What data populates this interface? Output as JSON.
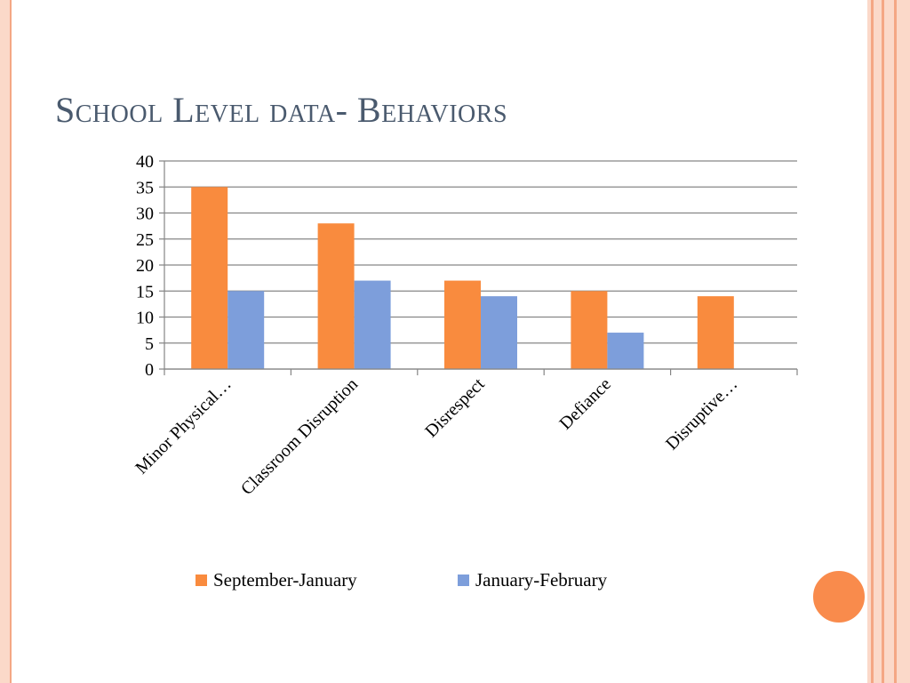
{
  "slide": {
    "title": "School Level data- Behaviors"
  },
  "colors": {
    "frame_light": "#fbd9c9",
    "frame_stripe": "#f4a784",
    "accent_circle": "#f98b4c",
    "title_text": "#4a5a6e",
    "gridline": "#868686"
  },
  "chart_data": {
    "type": "bar",
    "title": "",
    "xlabel": "",
    "ylabel": "",
    "categories": [
      "Minor Physical…",
      "Classroom Disruption",
      "Disrespect",
      "Defiance",
      "Disruptive…"
    ],
    "series": [
      {
        "name": "September-January",
        "color": "#f98b3e",
        "values": [
          35,
          28,
          17,
          15,
          14
        ]
      },
      {
        "name": "January-February",
        "color": "#7d9edb",
        "values": [
          15,
          17,
          14,
          7,
          null
        ]
      }
    ],
    "ylim": [
      0,
      40
    ],
    "yticks": [
      0,
      5,
      10,
      15,
      20,
      25,
      30,
      35,
      40
    ],
    "grid": true,
    "legend_position": "bottom"
  }
}
